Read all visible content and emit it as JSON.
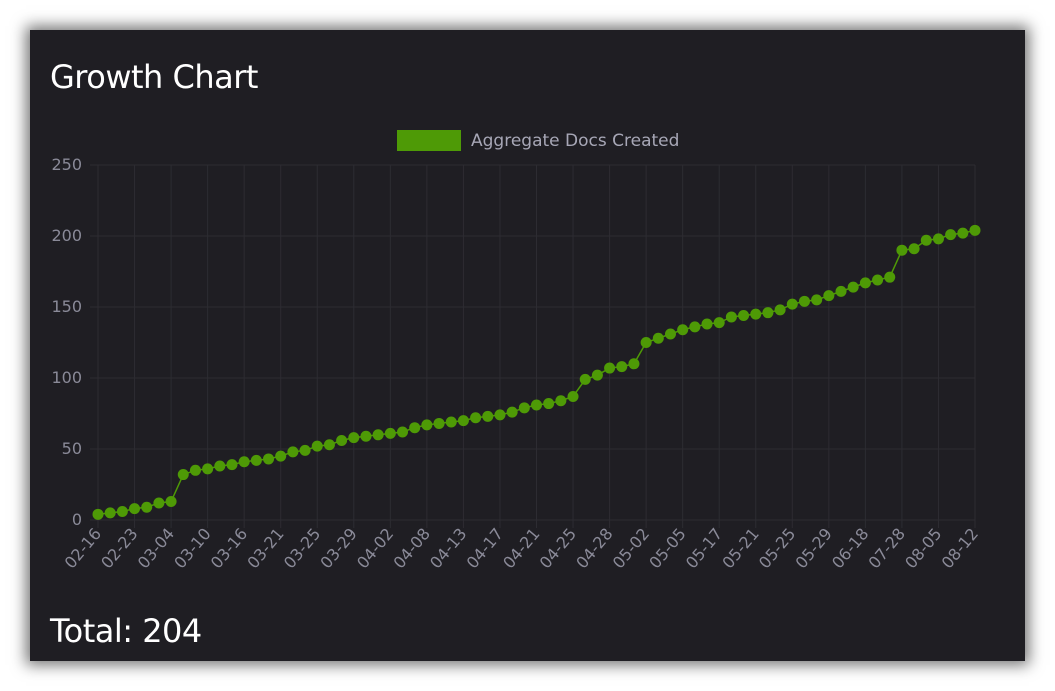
{
  "title": "Growth Chart",
  "total_label": "Total: 204",
  "colors": {
    "series": "#4e9a06",
    "grid": "#2d2c32",
    "panel": "#1f1e23"
  },
  "chart_data": {
    "type": "line",
    "series": [
      {
        "name": "Aggregate Docs Created",
        "values": [
          4,
          5,
          6,
          8,
          9,
          12,
          13,
          32,
          35,
          36,
          38,
          39,
          41,
          42,
          43,
          45,
          48,
          49,
          52,
          53,
          56,
          58,
          59,
          60,
          61,
          62,
          65,
          67,
          68,
          69,
          70,
          72,
          73,
          74,
          76,
          79,
          81,
          82,
          84,
          87,
          99,
          102,
          107,
          108,
          110,
          125,
          128,
          131,
          134,
          136,
          138,
          139,
          143,
          144,
          145,
          146,
          148,
          152,
          154,
          155,
          158,
          161,
          164,
          167,
          169,
          171,
          190,
          191,
          197,
          198,
          201,
          202,
          204
        ]
      }
    ],
    "x_tick_labels": [
      "02-16",
      "02-23",
      "03-04",
      "03-10",
      "03-16",
      "03-21",
      "03-25",
      "03-29",
      "04-02",
      "04-08",
      "04-13",
      "04-17",
      "04-21",
      "04-25",
      "04-28",
      "05-02",
      "05-05",
      "05-17",
      "05-21",
      "05-25",
      "05-29",
      "06-18",
      "07-28",
      "08-05",
      "08-12"
    ],
    "y_ticks": [
      0,
      50,
      100,
      150,
      200,
      250
    ],
    "ylim": [
      0,
      250
    ],
    "grid": true,
    "legend": "top-center"
  }
}
